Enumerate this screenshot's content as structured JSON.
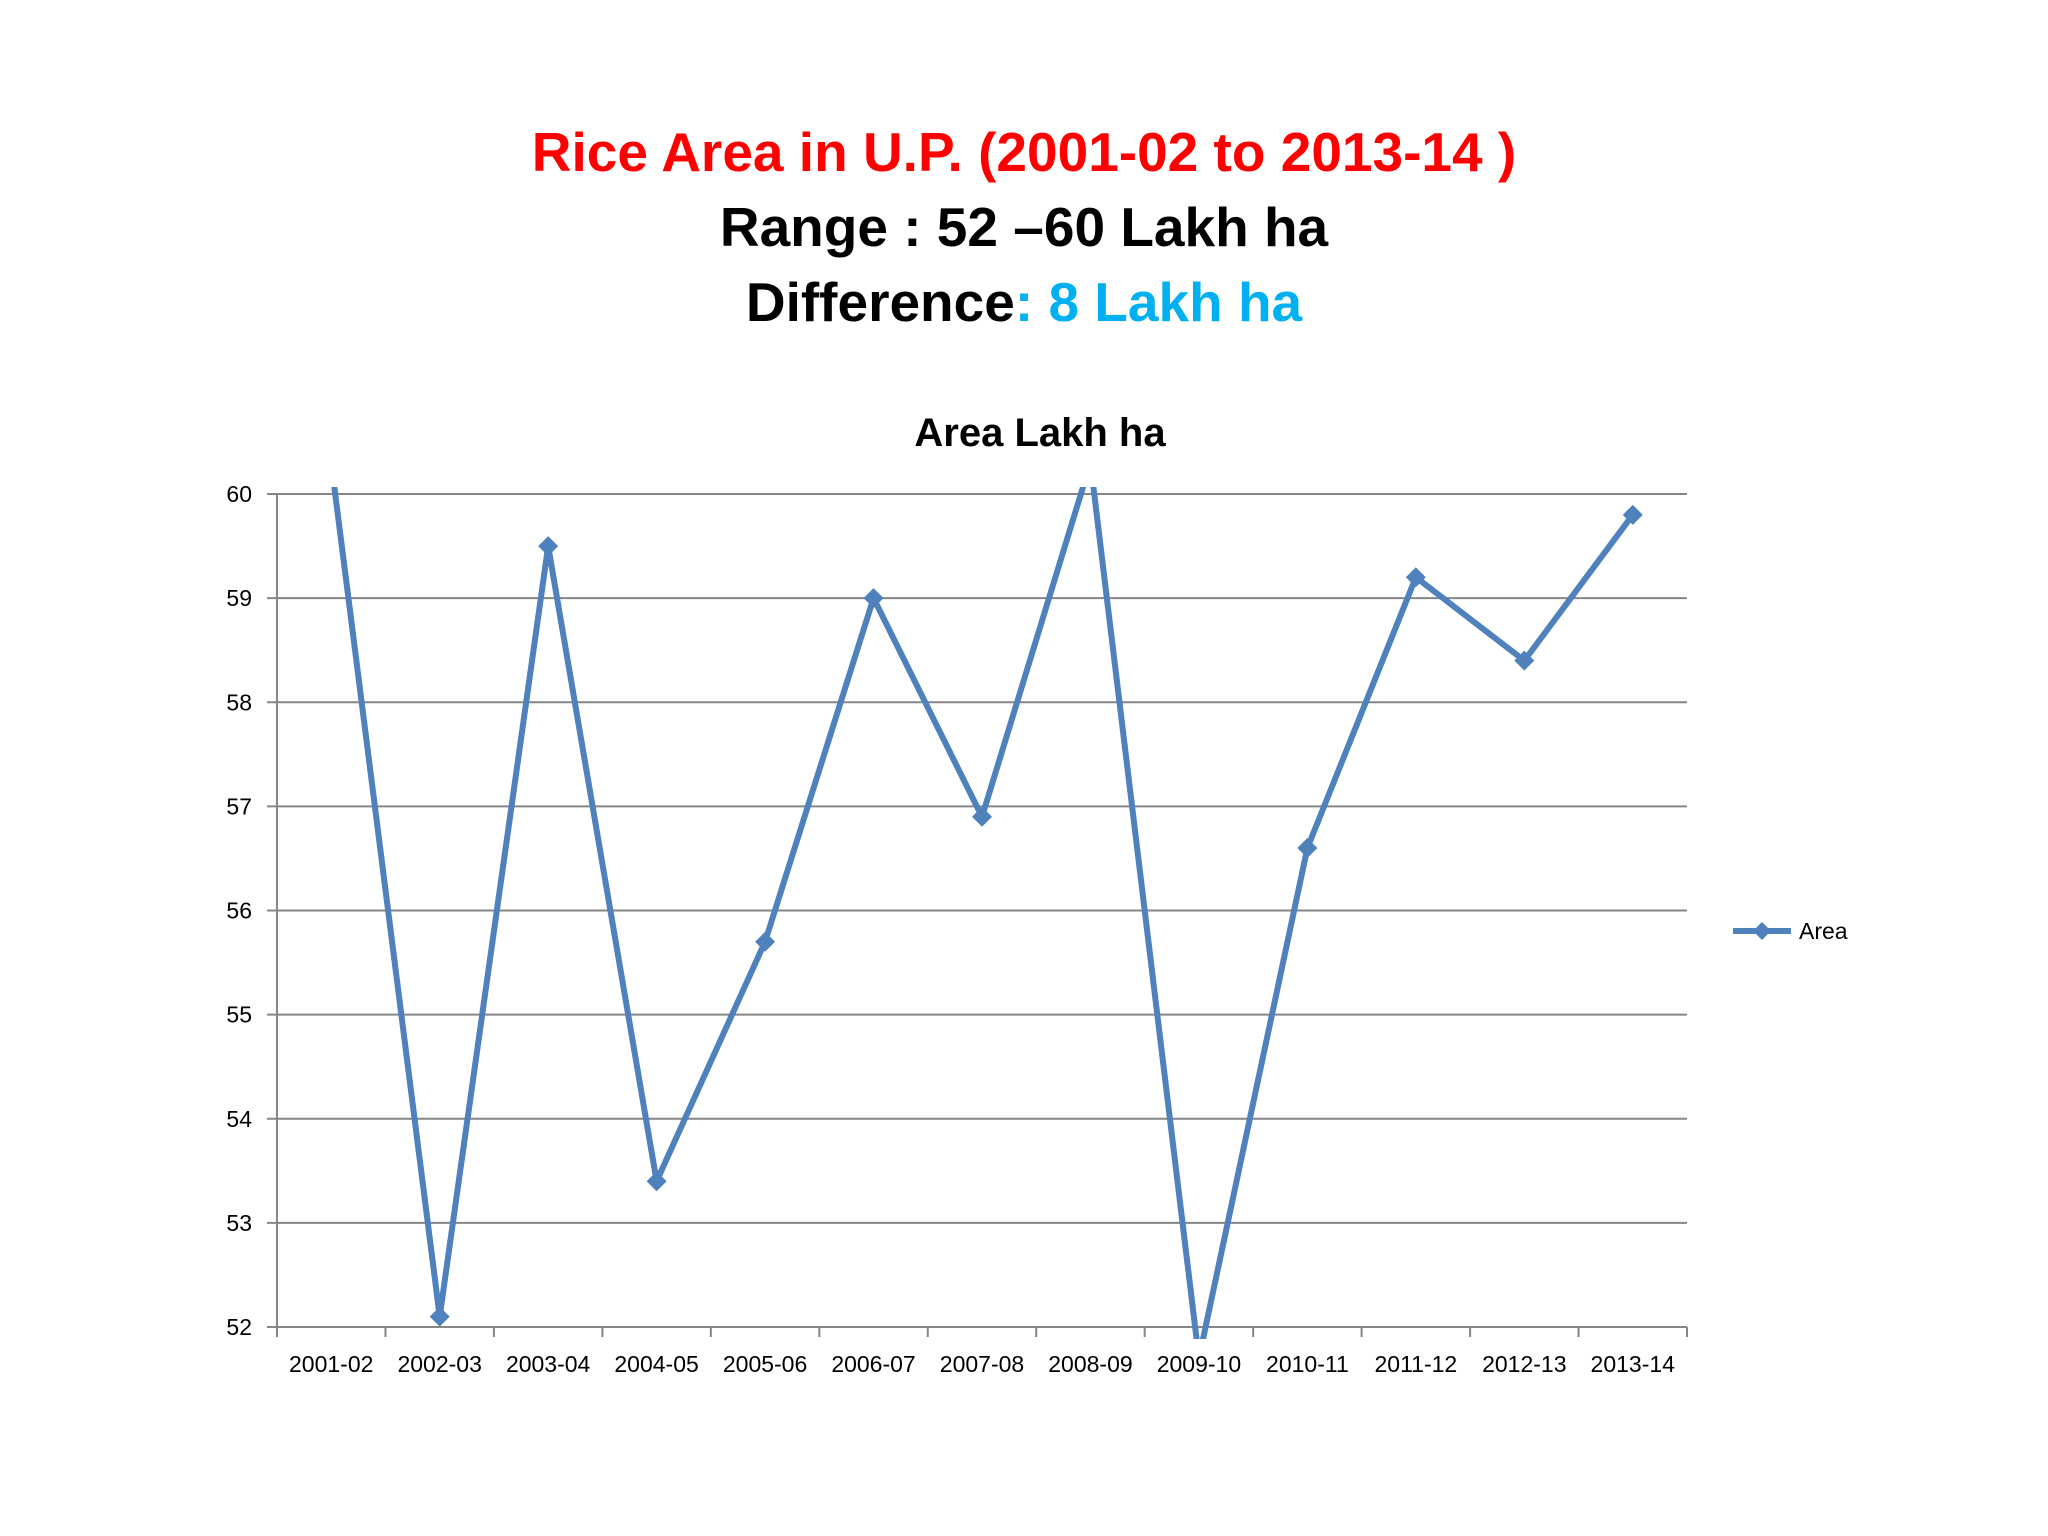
{
  "slide": {
    "title": "Rice Area in U.P. (2001-02 to 2013-14 )",
    "range_text": "Range : 52 –60 Lakh ha",
    "difference_label": "Difference",
    "difference_colon": ":",
    "difference_value": "8 Lakh ha"
  },
  "colors": {
    "title": "#ff0000",
    "difference_accent": "#00b0f0",
    "series": "#4f81bd",
    "gridline": "#868686",
    "axis": "#868686"
  },
  "chart_data": {
    "type": "line",
    "title": "Area Lakh ha",
    "xlabel": "",
    "ylabel": "",
    "categories": [
      "2001-02",
      "2002-03",
      "2003-04",
      "2004-05",
      "2005-06",
      "2006-07",
      "2007-08",
      "2008-09",
      "2009-10",
      "2010-11",
      "2011-12",
      "2012-13",
      "2013-14"
    ],
    "series": [
      {
        "name": "Area",
        "values": [
          60.3,
          52.1,
          59.5,
          53.4,
          55.7,
          59.0,
          56.9,
          60.3,
          51.7,
          56.6,
          59.2,
          58.4,
          59.8
        ],
        "marker": "diamond"
      }
    ],
    "ylim": [
      52,
      60
    ],
    "yticks": [
      "52",
      "53",
      "54",
      "55",
      "56",
      "57",
      "58",
      "59",
      "60"
    ],
    "grid": true,
    "legend_position": "right"
  }
}
